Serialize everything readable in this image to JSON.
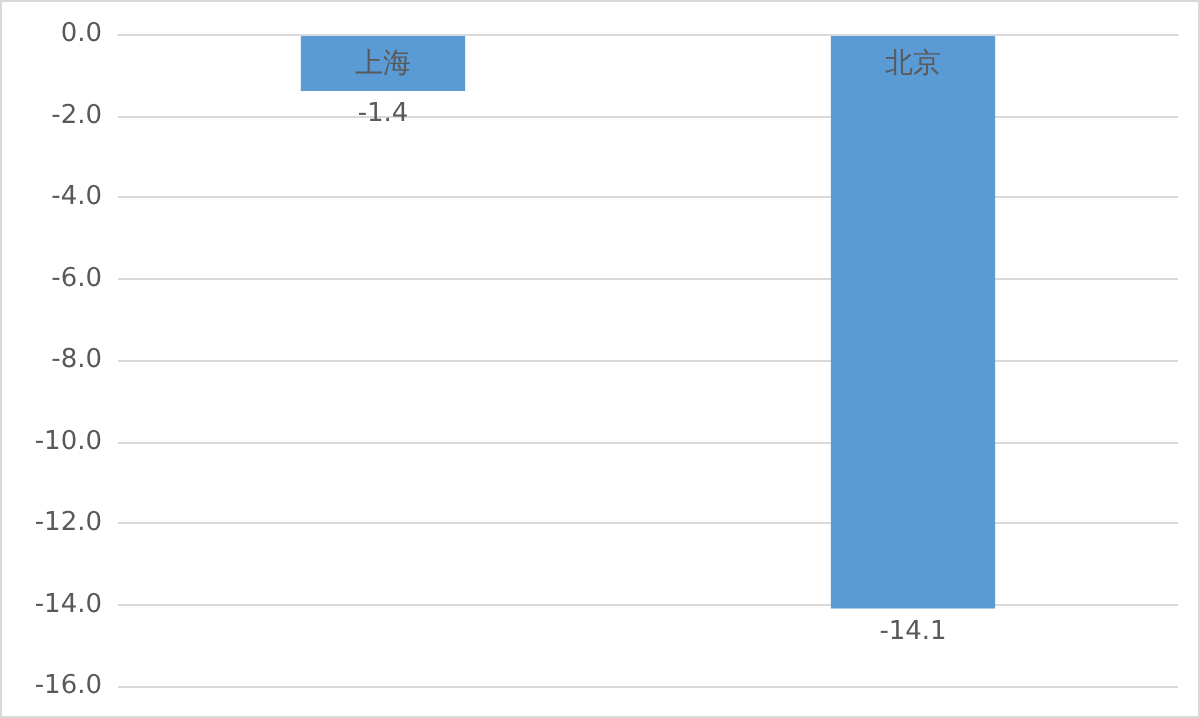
{
  "chart_data": {
    "type": "bar",
    "categories": [
      "上海",
      "北京"
    ],
    "values": [
      -1.4,
      -14.1
    ],
    "color": "#5b9bd5",
    "ylim": [
      -16,
      0
    ],
    "yticks": [
      {
        "value": 0,
        "label": "0.0"
      },
      {
        "value": -2,
        "label": "-2.0"
      },
      {
        "value": -4,
        "label": "-4.0"
      },
      {
        "value": -6,
        "label": "-6.0"
      },
      {
        "value": -8,
        "label": "-8.0"
      },
      {
        "value": -10,
        "label": "-10.0"
      },
      {
        "value": -12,
        "label": "-12.0"
      },
      {
        "value": -14,
        "label": "-14.0"
      },
      {
        "value": -16,
        "label": "-16.0"
      }
    ],
    "grid": "y",
    "data_labels": true
  }
}
